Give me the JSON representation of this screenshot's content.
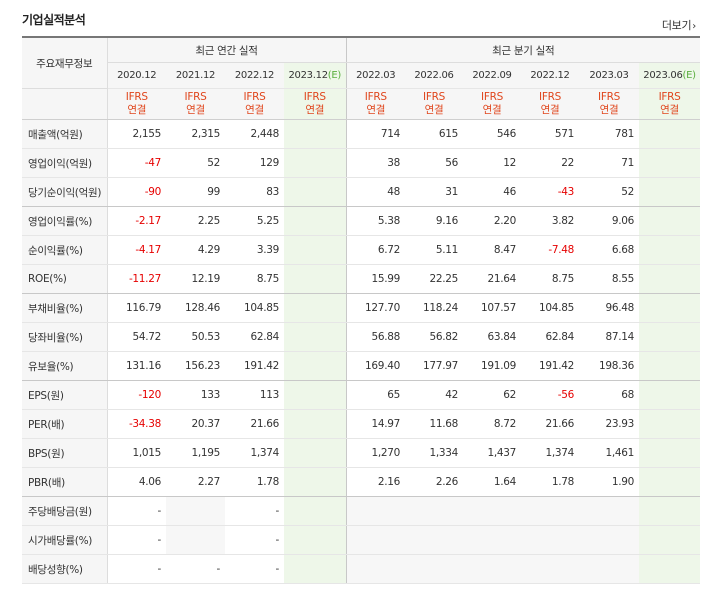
{
  "section_title": "기업실적분석",
  "more_link": "더보기",
  "more_chevron": "›",
  "colors": {
    "negative": "#e60000",
    "ifrs": "#e0461d",
    "estimate_bg": "#eef7e9",
    "estimate_mark": "#5aaf3f"
  },
  "header": {
    "row_head": "주요재무정보",
    "annual_group": "최근 연간 실적",
    "quarter_group": "최근 분기 실적",
    "periods": [
      "2020.12",
      "2021.12",
      "2022.12",
      "2023.12",
      "2022.03",
      "2022.06",
      "2022.09",
      "2022.12",
      "2023.03",
      "2023.06"
    ],
    "estimate_mark": "(E)",
    "ifrs_top": "IFRS",
    "ifrs_bottom": "연결"
  },
  "rows": [
    {
      "label": "매출액(억원)",
      "values": [
        "2,155",
        "2,315",
        "2,448",
        "",
        "714",
        "615",
        "546",
        "571",
        "781",
        ""
      ]
    },
    {
      "label": "영업이익(억원)",
      "values": [
        "-47",
        "52",
        "129",
        "",
        "38",
        "56",
        "12",
        "22",
        "71",
        ""
      ]
    },
    {
      "label": "당기순이익(억원)",
      "values": [
        "-90",
        "99",
        "83",
        "",
        "48",
        "31",
        "46",
        "-43",
        "52",
        ""
      ]
    },
    {
      "label": "영업이익률(%)",
      "values": [
        "-2.17",
        "2.25",
        "5.25",
        "",
        "5.38",
        "9.16",
        "2.20",
        "3.82",
        "9.06",
        ""
      ]
    },
    {
      "label": "순이익률(%)",
      "values": [
        "-4.17",
        "4.29",
        "3.39",
        "",
        "6.72",
        "5.11",
        "8.47",
        "-7.48",
        "6.68",
        ""
      ]
    },
    {
      "label": "ROE(%)",
      "values": [
        "-11.27",
        "12.19",
        "8.75",
        "",
        "15.99",
        "22.25",
        "21.64",
        "8.75",
        "8.55",
        ""
      ]
    },
    {
      "label": "부채비율(%)",
      "values": [
        "116.79",
        "128.46",
        "104.85",
        "",
        "127.70",
        "118.24",
        "107.57",
        "104.85",
        "96.48",
        ""
      ]
    },
    {
      "label": "당좌비율(%)",
      "values": [
        "54.72",
        "50.53",
        "62.84",
        "",
        "56.88",
        "56.82",
        "63.84",
        "62.84",
        "87.14",
        ""
      ]
    },
    {
      "label": "유보율(%)",
      "values": [
        "131.16",
        "156.23",
        "191.42",
        "",
        "169.40",
        "177.97",
        "191.09",
        "191.42",
        "198.36",
        ""
      ]
    },
    {
      "label": "EPS(원)",
      "values": [
        "-120",
        "133",
        "113",
        "",
        "65",
        "42",
        "62",
        "-56",
        "68",
        ""
      ]
    },
    {
      "label": "PER(배)",
      "values": [
        "-34.38",
        "20.37",
        "21.66",
        "",
        "14.97",
        "11.68",
        "8.72",
        "21.66",
        "23.93",
        ""
      ]
    },
    {
      "label": "BPS(원)",
      "values": [
        "1,015",
        "1,195",
        "1,374",
        "",
        "1,270",
        "1,334",
        "1,437",
        "1,374",
        "1,461",
        ""
      ]
    },
    {
      "label": "PBR(배)",
      "values": [
        "4.06",
        "2.27",
        "1.78",
        "",
        "2.16",
        "2.26",
        "1.64",
        "1.78",
        "1.90",
        ""
      ]
    },
    {
      "label": "주당배당금(원)",
      "values": [
        "-",
        "",
        "-",
        "",
        "",
        "",
        "",
        "",
        "",
        ""
      ]
    },
    {
      "label": "시가배당률(%)",
      "values": [
        "-",
        "",
        "-",
        "",
        "",
        "",
        "",
        "",
        "",
        ""
      ]
    },
    {
      "label": "배당성향(%)",
      "values": [
        "-",
        "-",
        "-",
        "",
        "",
        "",
        "",
        "",
        "",
        ""
      ]
    }
  ]
}
